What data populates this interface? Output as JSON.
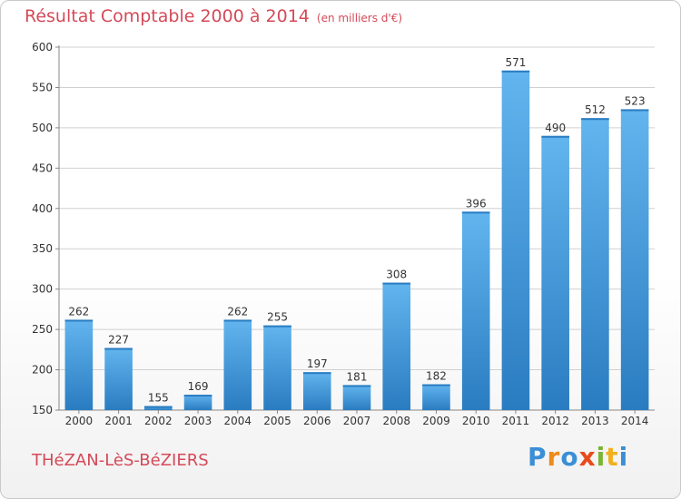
{
  "chart_data": {
    "type": "bar",
    "title": "Résultat Comptable 2000 à 2014",
    "unit_label": "(en milliers d'€)",
    "categories": [
      "2000",
      "2001",
      "2002",
      "2003",
      "2004",
      "2005",
      "2006",
      "2007",
      "2008",
      "2009",
      "2010",
      "2011",
      "2012",
      "2013",
      "2014"
    ],
    "values": [
      262,
      227,
      155,
      169,
      262,
      255,
      197,
      181,
      308,
      182,
      396,
      571,
      490,
      512,
      523
    ],
    "ylim": [
      150,
      600
    ],
    "yticks": [
      150,
      200,
      250,
      300,
      350,
      400,
      450,
      500,
      550,
      600
    ],
    "xlabel": "",
    "ylabel": "",
    "grid": true
  },
  "footer": {
    "commune": "THéZAN-LèS-BéZIERS",
    "logo_letters": [
      "P",
      "r",
      "o",
      "x",
      "i",
      "t",
      "i"
    ],
    "logo_colors": [
      "#3a8fd6",
      "#f08a1c",
      "#3a8fd6",
      "#e84a1c",
      "#7ab534",
      "#f2b01c",
      "#3a8fd6"
    ]
  },
  "colors": {
    "bar_top": "#62b5ee",
    "bar_bottom": "#2a7cc1",
    "title": "#d44a58",
    "grid": "#d0d0d0"
  }
}
